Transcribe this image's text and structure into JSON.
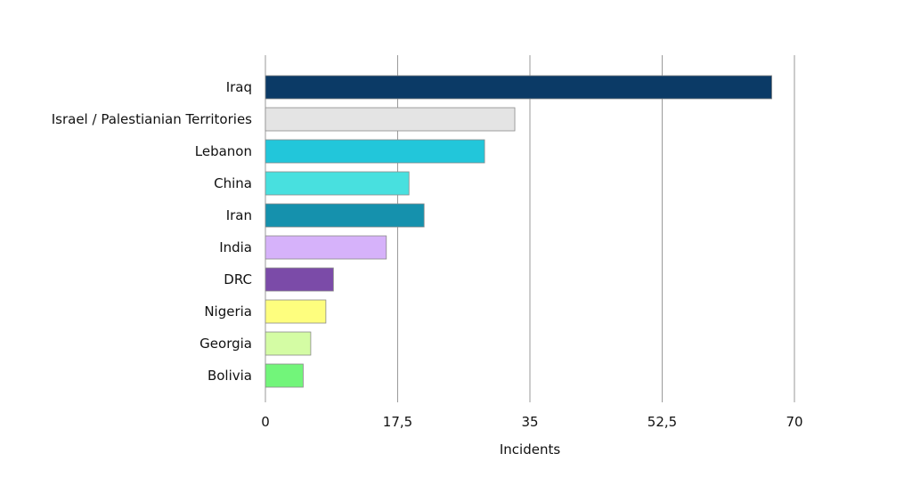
{
  "chart_data": {
    "type": "bar",
    "orientation": "horizontal",
    "categories": [
      "Iraq",
      "Israel / Palestianian Territories",
      "Lebanon",
      "China",
      "Iran",
      "India",
      "DRC",
      "Nigeria",
      "Georgia",
      "Bolivia"
    ],
    "values": [
      67,
      33,
      29,
      19,
      21,
      16,
      9,
      8,
      6,
      5
    ],
    "colors": [
      "#0b3a66",
      "#e4e4e4",
      "#22c6da",
      "#48e0df",
      "#1591ad",
      "#d6b2fa",
      "#7b4ba8",
      "#fefe7e",
      "#d4fca4",
      "#72f57a"
    ],
    "xlabel": "Incidents",
    "ylabel": "",
    "xlim": [
      0,
      70
    ],
    "xticks": [
      "0",
      "17,5",
      "35",
      "52,5",
      "70"
    ],
    "xtick_values": [
      0,
      17.5,
      35,
      52.5,
      70
    ],
    "grid": "vertical",
    "legend": "none"
  }
}
